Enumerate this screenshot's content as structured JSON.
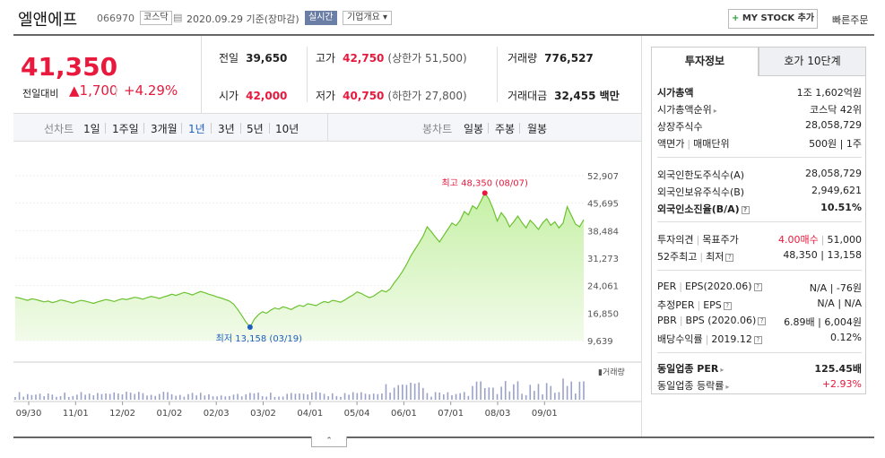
{
  "header": {
    "name": "엘앤에프",
    "code": "066970",
    "market": "코스닥",
    "date": "2020.09.29",
    "basis": "기준(장마감)",
    "live": "실시간",
    "company_info": "기업개요 ▾",
    "my_stock": "MY STOCK 추가",
    "quick_order": "빠른주문"
  },
  "quote": {
    "price": "41,350",
    "prev_label": "전일대비",
    "change": "▲1,700",
    "rate": "+4.29%"
  },
  "summary": {
    "prev_close_label": "전일",
    "prev_close": "39,650",
    "high_label": "고가",
    "high": "42,750",
    "upper_limit": "(상한가 51,500)",
    "volume_label": "거래량",
    "volume": "776,527",
    "open_label": "시가",
    "open": "42,000",
    "low_label": "저가",
    "low": "40,750",
    "lower_limit": "(하한가 27,800)",
    "amount_label": "거래대금",
    "amount": "32,455 백만"
  },
  "tabs": {
    "line_chart_label": "선차트",
    "periods": [
      "1일",
      "1주일",
      "3개월",
      "1년",
      "3년",
      "5년",
      "10년"
    ],
    "candle_label": "봉차트",
    "candles": [
      "일봉",
      "주봉",
      "월봉"
    ]
  },
  "chart_data": {
    "type": "area",
    "x_ticks": [
      "09/30",
      "11/01",
      "12/02",
      "01/02",
      "02/03",
      "03/02",
      "04/01",
      "05/04",
      "06/01",
      "07/01",
      "08/03",
      "09/01"
    ],
    "y_ticks": [
      "52,907",
      "45,695",
      "38,484",
      "31,273",
      "24,061",
      "16,850",
      "9,639"
    ],
    "ylim": [
      9639,
      52907
    ],
    "values": [
      21000,
      20800,
      20500,
      20200,
      20600,
      20400,
      20100,
      19800,
      20000,
      19600,
      19900,
      20300,
      20100,
      19800,
      19500,
      19900,
      20200,
      20000,
      19700,
      19400,
      19800,
      20100,
      20400,
      20200,
      19900,
      20300,
      20600,
      20400,
      20700,
      21000,
      20800,
      20500,
      20900,
      21200,
      21000,
      20700,
      21100,
      21400,
      21800,
      21500,
      21900,
      22300,
      22000,
      21600,
      22100,
      22500,
      22200,
      21800,
      21500,
      21100,
      20800,
      20400,
      20000,
      19200,
      17800,
      16200,
      14500,
      13158,
      15200,
      16400,
      17200,
      16800,
      17600,
      18200,
      17900,
      18500,
      18200,
      17800,
      18400,
      18900,
      18600,
      19300,
      19100,
      18800,
      19400,
      19900,
      19600,
      20200,
      20000,
      19700,
      20300,
      21000,
      21600,
      22400,
      22000,
      21400,
      20900,
      21300,
      22100,
      22800,
      22400,
      23200,
      24800,
      26200,
      27800,
      29600,
      31800,
      33500,
      35200,
      37000,
      39500,
      38200,
      36800,
      35500,
      37200,
      38800,
      40500,
      39800,
      41200,
      43500,
      42600,
      45000,
      44200,
      46100,
      48350,
      46800,
      44200,
      41000,
      43200,
      41800,
      39500,
      40800,
      42300,
      40600,
      39200,
      41200,
      40100,
      38800,
      40500,
      41600,
      39900,
      40800,
      39200,
      40500,
      44800,
      42500,
      40200,
      39500,
      41350
    ],
    "high_label": "최고 48,350 (08/07)",
    "low_label": "최저 13,158 (03/19)",
    "volume_legend": "거래량"
  },
  "panel": {
    "tab_active": "투자정보",
    "tab_inactive": "호가 10단계",
    "market_cap_label": "시가총액",
    "market_cap": "1조 1,602억원",
    "rank_label": "시가총액순위",
    "rank": "코스닥 42위",
    "shares_label": "상장주식수",
    "shares": "28,058,729",
    "face_label": "액면가",
    "unit_label": "매매단위",
    "face_unit": "500원 | 1주",
    "foreign_limit_label": "외국인한도주식수(A)",
    "foreign_limit": "28,058,729",
    "foreign_hold_label": "외국인보유주식수(B)",
    "foreign_hold": "2,949,621",
    "foreign_ratio_label": "외국인소진율(B/A)",
    "foreign_ratio": "10.51%",
    "opinion_label": "투자의견",
    "target_label": "목표주가",
    "opinion": "4.00매수",
    "target": "51,000",
    "w52_label": "52주최고",
    "w52_low_label": "최저",
    "w52": "48,350 | 13,158",
    "per_label": "PER",
    "eps_label": "EPS(2020.06)",
    "per": "N/A | -76원",
    "est_per_label": "추정PER",
    "est_eps_label": "EPS",
    "est_per": "N/A | N/A",
    "pbr_label": "PBR",
    "bps_label": "BPS (2020.06)",
    "pbr": "6.89배 | 6,004원",
    "div_label": "배당수익률",
    "div_date": "2019.12",
    "div": "0.12%",
    "ind_per_label": "동일업종 PER",
    "ind_per": "125.45배",
    "ind_rate_label": "동일업종 등락률",
    "ind_rate": "+2.93%"
  },
  "colors": {
    "up": "#e8193c",
    "down": "#1e5fbe",
    "line": "#6cc230",
    "area": "#d8f5c0"
  },
  "icons": {
    "collapse": "chevron-up-icon",
    "help": "help-icon"
  }
}
